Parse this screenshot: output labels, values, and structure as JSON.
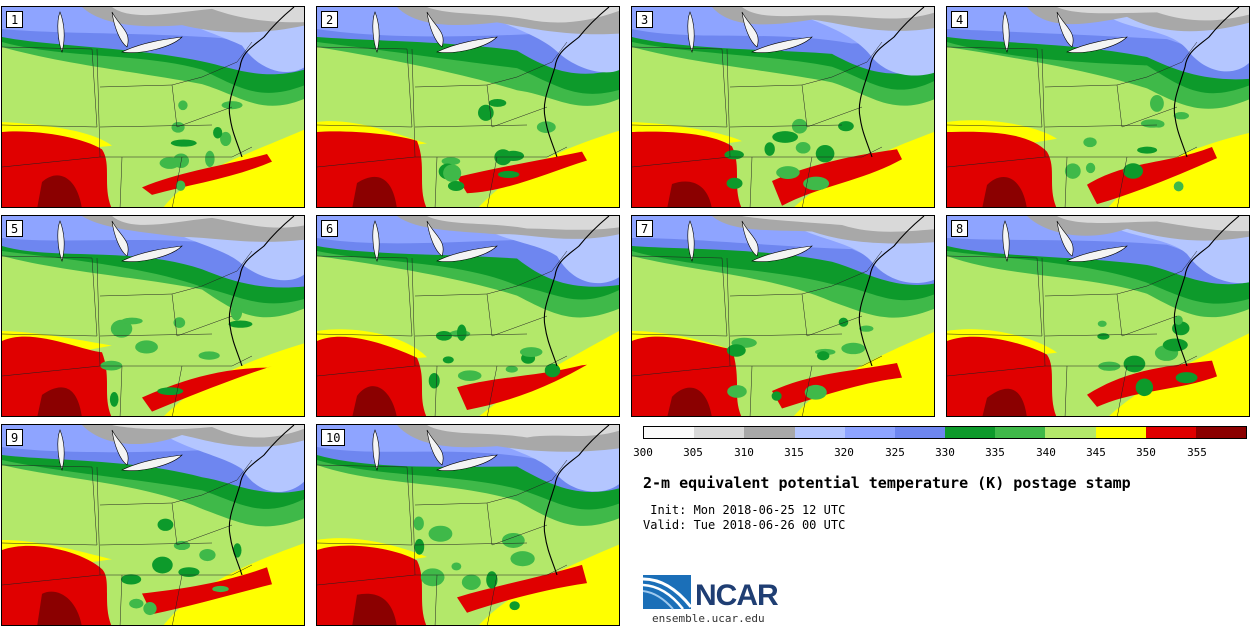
{
  "panels": [
    {
      "label": "1"
    },
    {
      "label": "2"
    },
    {
      "label": "3"
    },
    {
      "label": "4"
    },
    {
      "label": "5"
    },
    {
      "label": "6"
    },
    {
      "label": "7"
    },
    {
      "label": "8"
    },
    {
      "label": "9"
    },
    {
      "label": "10"
    }
  ],
  "colorbar": {
    "tick_labels": [
      "300",
      "305",
      "310",
      "315",
      "320",
      "325",
      "330",
      "335",
      "340",
      "345",
      "350",
      "355"
    ],
    "colors": [
      "#fafafa",
      "#d9d9d9",
      "#a8a8a8",
      "#b4c6ff",
      "#8ea4ff",
      "#6e86f0",
      "#0d9a2b",
      "#3fb949",
      "#b3e86a",
      "#ffff00",
      "#e00000",
      "#8b0000"
    ]
  },
  "title": "2-m equivalent potential temperature (K) postage stamp",
  "init_line": " Init: Mon 2018-06-25 12 UTC",
  "valid_line": "Valid: Tue 2018-06-26 00 UTC",
  "logo": {
    "name": "NCAR",
    "url": "ensemble.ucar.edu"
  }
}
